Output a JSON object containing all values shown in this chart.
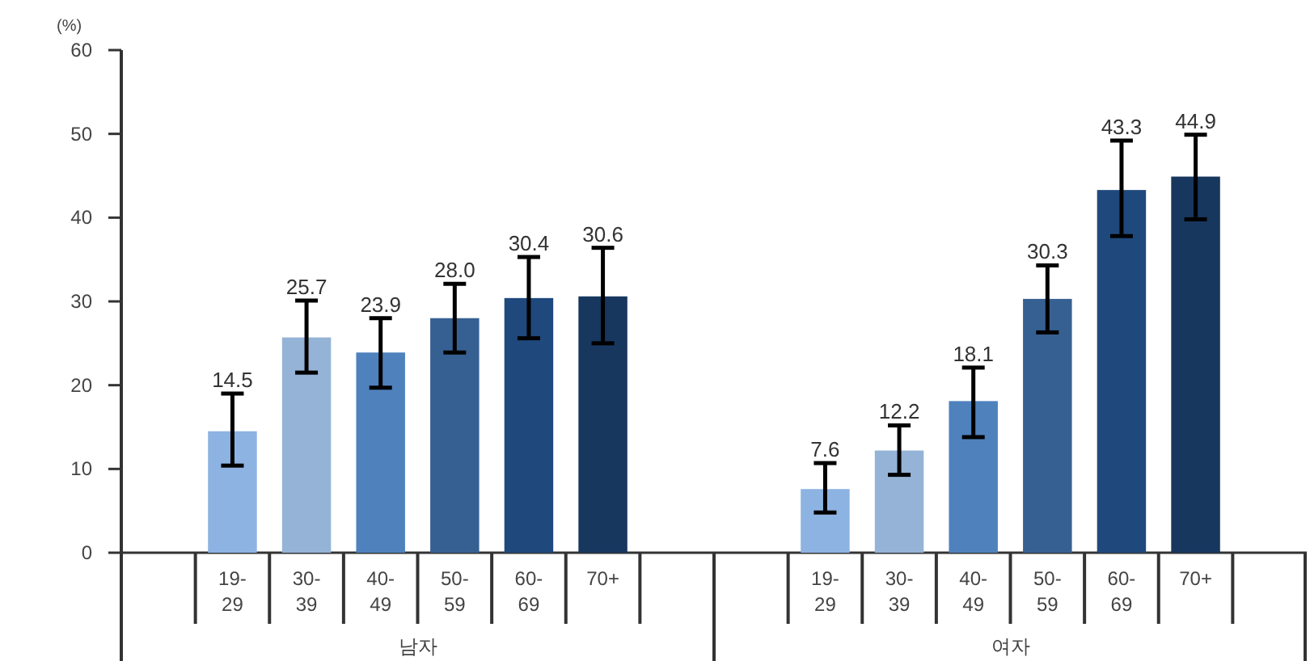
{
  "chart_data": [
    {
      "type": "bar",
      "ylabel": "(%)",
      "xlabel": "남자",
      "categories": [
        "19-29",
        "30-39",
        "40-49",
        "50-59",
        "60-69",
        "70+"
      ],
      "values": [
        14.5,
        25.7,
        23.9,
        28.0,
        30.4,
        30.6
      ],
      "value_labels": [
        "14.5",
        "25.7",
        "23.9",
        "28.0",
        "30.4",
        "30.6"
      ],
      "errors": [
        [
          10.4,
          19.0
        ],
        [
          21.5,
          30.1
        ],
        [
          19.7,
          28.0
        ],
        [
          23.9,
          32.1
        ],
        [
          25.6,
          35.3
        ],
        [
          25.0,
          36.4
        ]
      ],
      "colors": [
        "#8db3e2",
        "#95b3d7",
        "#4f81bd",
        "#366092",
        "#1f497d",
        "#17375e"
      ],
      "ylim": [
        0,
        60
      ],
      "yticks": [
        0,
        10,
        20,
        30,
        40,
        50,
        60
      ]
    },
    {
      "type": "bar",
      "xlabel": "여자",
      "categories": [
        "19-29",
        "30-39",
        "40-49",
        "50-59",
        "60-69",
        "70+"
      ],
      "values": [
        7.6,
        12.2,
        18.1,
        30.3,
        43.3,
        44.9
      ],
      "value_labels": [
        "7.6",
        "12.2",
        "18.1",
        "30.3",
        "43.3",
        "44.9"
      ],
      "errors": [
        [
          4.8,
          10.7
        ],
        [
          9.3,
          15.2
        ],
        [
          13.8,
          22.1
        ],
        [
          26.3,
          34.3
        ],
        [
          37.8,
          49.2
        ],
        [
          39.8,
          49.9
        ]
      ],
      "colors": [
        "#8db3e2",
        "#95b3d7",
        "#4f81bd",
        "#366092",
        "#1f497d",
        "#17375e"
      ],
      "ylim": [
        0,
        60
      ],
      "tick_labels": "x"
    }
  ]
}
